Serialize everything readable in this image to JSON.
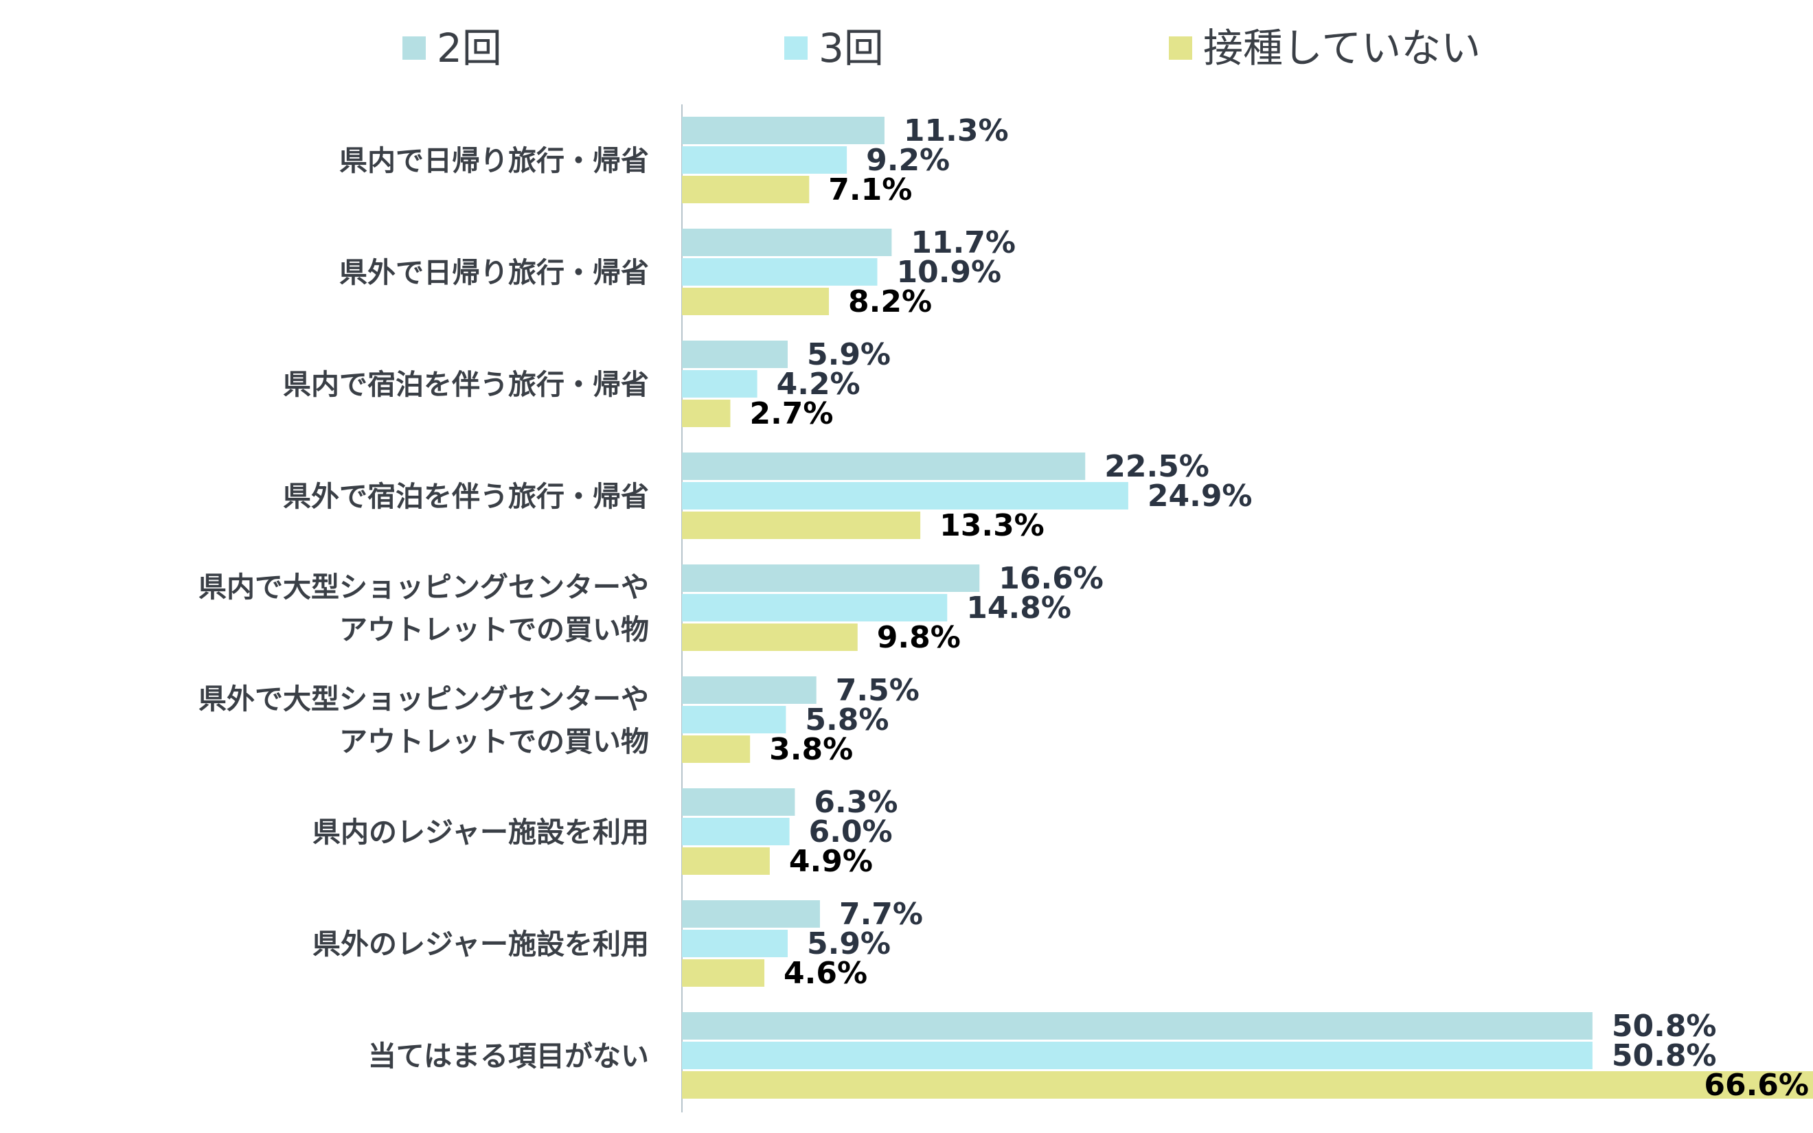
{
  "chart_data": {
    "type": "bar",
    "orientation": "horizontal",
    "title": "",
    "xlabel": "",
    "ylabel": "",
    "xlim": [
      0,
      100
    ],
    "grid": false,
    "legend_position": "top",
    "value_format": "percent_1dp",
    "categories": [
      [
        "県内で日帰り旅行・帰省"
      ],
      [
        "県外で日帰り旅行・帰省"
      ],
      [
        "県内で宿泊を伴う旅行・帰省"
      ],
      [
        "県外で宿泊を伴う旅行・帰省"
      ],
      [
        "県内で大型ショッピングセンターや",
        "アウトレットでの買い物"
      ],
      [
        "県外で大型ショッピングセンターや",
        "アウトレットでの買い物"
      ],
      [
        "県内のレジャー施設を利用"
      ],
      [
        "県外のレジャー施設を利用"
      ],
      [
        "当てはまる項目がない"
      ]
    ],
    "series": [
      {
        "name": "2回",
        "color": "#b5dfe3",
        "label_color": "#2b3442",
        "values": [
          11.3,
          11.7,
          5.9,
          22.5,
          16.6,
          7.5,
          6.3,
          7.7,
          50.8
        ]
      },
      {
        "name": "3回",
        "color": "#b3ebf3",
        "label_color": "#2b3442",
        "values": [
          9.2,
          10.9,
          4.2,
          24.9,
          14.8,
          5.8,
          6.0,
          5.9,
          50.8
        ]
      },
      {
        "name": "接種していない",
        "color": "#e3e48c",
        "label_color": "#000000",
        "values": [
          7.1,
          8.2,
          2.7,
          13.3,
          9.8,
          3.8,
          4.9,
          4.6,
          66.6
        ]
      }
    ]
  }
}
